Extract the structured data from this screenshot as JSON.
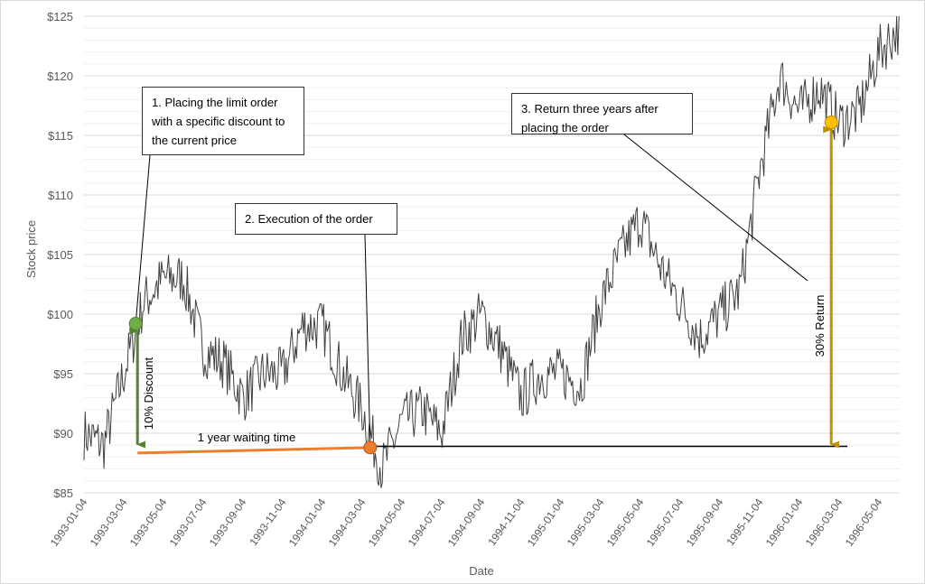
{
  "chart_data": {
    "type": "line",
    "title": "",
    "xlabel": "Date",
    "ylabel": "Stock price",
    "ylim": [
      85,
      125
    ],
    "y_ticks": [
      "$85",
      "$90",
      "$95",
      "$100",
      "$105",
      "$110",
      "$115",
      "$120",
      "$125"
    ],
    "y_tick_values": [
      85,
      90,
      95,
      100,
      105,
      110,
      115,
      120,
      125
    ],
    "x_ticks": [
      "1993-01-04",
      "1993-03-04",
      "1993-05-04",
      "1993-07-04",
      "1993-09-04",
      "1993-11-04",
      "1994-01-04",
      "1994-03-04",
      "1994-05-04",
      "1994-07-04",
      "1994-09-04",
      "1994-11-04",
      "1995-01-04",
      "1995-03-04",
      "1995-05-04",
      "1995-07-04",
      "1995-09-04",
      "1995-11-04",
      "1996-01-04",
      "1996-03-04",
      "1996-05-04"
    ],
    "grid": "horizontal",
    "series": [
      {
        "name": "Stock price",
        "color": "#404040",
        "monthly_points": [
          [
            "1993-01",
            90
          ],
          [
            "1993-02",
            89
          ],
          [
            "1993-03",
            95
          ],
          [
            "1993-04",
            101
          ],
          [
            "1993-05",
            103
          ],
          [
            "1993-06",
            103
          ],
          [
            "1993-07",
            97
          ],
          [
            "1993-08",
            96
          ],
          [
            "1993-09",
            93
          ],
          [
            "1993-10",
            95
          ],
          [
            "1993-11",
            95
          ],
          [
            "1993-12",
            99
          ],
          [
            "1994-01",
            99
          ],
          [
            "1994-02",
            95
          ],
          [
            "1994-03",
            92
          ],
          [
            "1994-04",
            87
          ],
          [
            "1994-05",
            91
          ],
          [
            "1994-06",
            92
          ],
          [
            "1994-07",
            90
          ],
          [
            "1994-08",
            98
          ],
          [
            "1994-09",
            100
          ],
          [
            "1994-10",
            97
          ],
          [
            "1994-11",
            93
          ],
          [
            "1994-12",
            95
          ],
          [
            "1995-01",
            95
          ],
          [
            "1995-02",
            94
          ],
          [
            "1995-03",
            101
          ],
          [
            "1995-04",
            105
          ],
          [
            "1995-05",
            108
          ],
          [
            "1995-06",
            104
          ],
          [
            "1995-07",
            101
          ],
          [
            "1995-08",
            98
          ],
          [
            "1995-09",
            100
          ],
          [
            "1995-10",
            102
          ],
          [
            "1995-11",
            112
          ],
          [
            "1995-12",
            120
          ],
          [
            "1996-01",
            117
          ],
          [
            "1996-02",
            119
          ],
          [
            "1996-03",
            116
          ],
          [
            "1996-04",
            117
          ],
          [
            "1996-05",
            122
          ],
          [
            "1996-06",
            124
          ]
        ]
      }
    ],
    "annotations": {
      "order_placed": {
        "month_index": 2.6,
        "price": 99.2,
        "color": "#5a8f3c"
      },
      "order_executed": {
        "month_index": 14.4,
        "price": 88.8,
        "color": "#ed7d31"
      },
      "return_point": {
        "month_index": 37.6,
        "price": 116.1,
        "color": "#ffc000"
      },
      "limit_level": 88.9,
      "discount_arrow_color": "#548235",
      "wait_line_color": "#ed7d31",
      "return_arrow_color": "#bf9000",
      "discount_label": "10% Discount",
      "wait_label": "1 year waiting time",
      "return_label": "30% Return",
      "box1": "1. Placing the limit order with a specific discount to the current price",
      "box2": "2. Execution of the order",
      "box3": "3. Return three years after placing the order"
    }
  }
}
